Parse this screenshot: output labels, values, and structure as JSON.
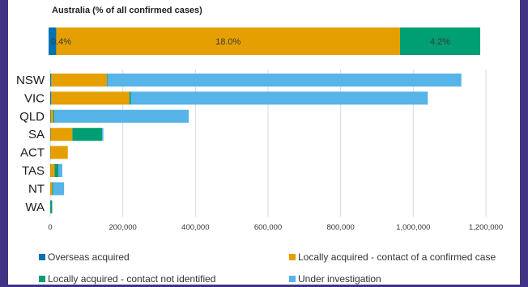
{
  "colors": {
    "frame": "#3f3384",
    "panel": "#ffffff",
    "grid": "#d9d9d9"
  },
  "chart_data": {
    "type": "bar",
    "orientation": "horizontal",
    "stacked": true,
    "summary": {
      "title": "Australia (% of all confirmed cases)",
      "values": [
        0.4,
        18.0,
        4.2
      ],
      "labels": [
        "0.4%",
        "18.0%",
        "4.2%"
      ]
    },
    "categories": [
      "NSW",
      "VIC",
      "QLD",
      "SA",
      "ACT",
      "TAS",
      "NT",
      "WA"
    ],
    "series": [
      {
        "name": "Overseas acquired",
        "color": "#0072b2",
        "values": [
          3000,
          3000,
          1500,
          1000,
          500,
          300,
          200,
          1000
        ]
      },
      {
        "name": "Locally acquired - contact of a confirmed case",
        "color": "#e69f00",
        "values": [
          153000,
          215000,
          7000,
          60000,
          48000,
          12000,
          5000,
          500
        ]
      },
      {
        "name": "Locally acquired - contact not identified",
        "color": "#009e73",
        "values": [
          1500,
          4000,
          3000,
          82000,
          0,
          10000,
          3000,
          4000
        ]
      },
      {
        "name": "Under investigation",
        "color": "#56b4e9",
        "values": [
          975000,
          818000,
          370000,
          3500,
          0,
          11000,
          30000,
          0
        ]
      }
    ],
    "xlim": [
      0,
      1200000
    ],
    "xticks": [
      0,
      200000,
      400000,
      600000,
      800000,
      1000000,
      1200000
    ],
    "xtick_labels": [
      "0",
      "200,000",
      "400,000",
      "600,000",
      "800,000",
      "1,000,000",
      "1,200,000"
    ],
    "grid": true,
    "legend": "bottom"
  }
}
